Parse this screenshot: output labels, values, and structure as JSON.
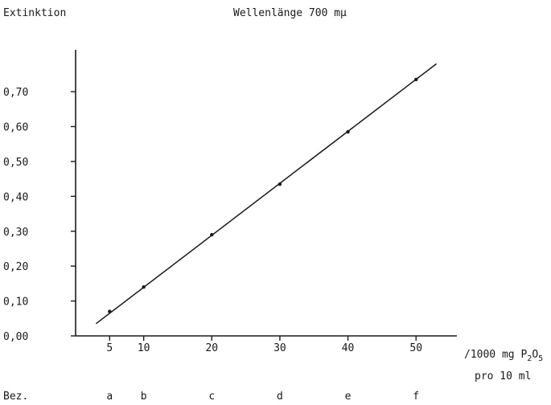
{
  "chart_data": {
    "type": "line",
    "ylabel": "Extinktion",
    "title": "Wellenlänge 700 mμ",
    "xlabel": {
      "prefix": "/1000 mg P",
      "sub1": "2",
      "mid": "O",
      "sub2": "5",
      "line2": "pro 10 ml"
    },
    "xlim": [
      0,
      56
    ],
    "ylim": [
      0,
      0.82
    ],
    "x_ticks": [
      {
        "value": 5,
        "label": "5"
      },
      {
        "value": 10,
        "label": "10"
      },
      {
        "value": 20,
        "label": "20"
      },
      {
        "value": 30,
        "label": "30"
      },
      {
        "value": 40,
        "label": "40"
      },
      {
        "value": 50,
        "label": "50"
      }
    ],
    "y_ticks": [
      {
        "value": 0.0,
        "label": "0,00"
      },
      {
        "value": 0.1,
        "label": "0,10"
      },
      {
        "value": 0.2,
        "label": "0,20"
      },
      {
        "value": 0.3,
        "label": "0,30"
      },
      {
        "value": 0.4,
        "label": "0,40"
      },
      {
        "value": 0.5,
        "label": "0,50"
      },
      {
        "value": 0.6,
        "label": "0,60"
      },
      {
        "value": 0.7,
        "label": "0,70"
      }
    ],
    "points": [
      {
        "x": 5,
        "y": 0.07
      },
      {
        "x": 10,
        "y": 0.14
      },
      {
        "x": 20,
        "y": 0.29
      },
      {
        "x": 30,
        "y": 0.435
      },
      {
        "x": 40,
        "y": 0.585
      },
      {
        "x": 50,
        "y": 0.735
      }
    ],
    "fit_line": {
      "x0": 3,
      "y0": 0.035,
      "x1": 53,
      "y1": 0.78
    },
    "bez_label": "Bez.",
    "bez": [
      {
        "x": 5,
        "label": "a"
      },
      {
        "x": 10,
        "label": "b"
      },
      {
        "x": 20,
        "label": "c"
      },
      {
        "x": 30,
        "label": "d"
      },
      {
        "x": 40,
        "label": "e"
      },
      {
        "x": 50,
        "label": "f"
      }
    ]
  }
}
